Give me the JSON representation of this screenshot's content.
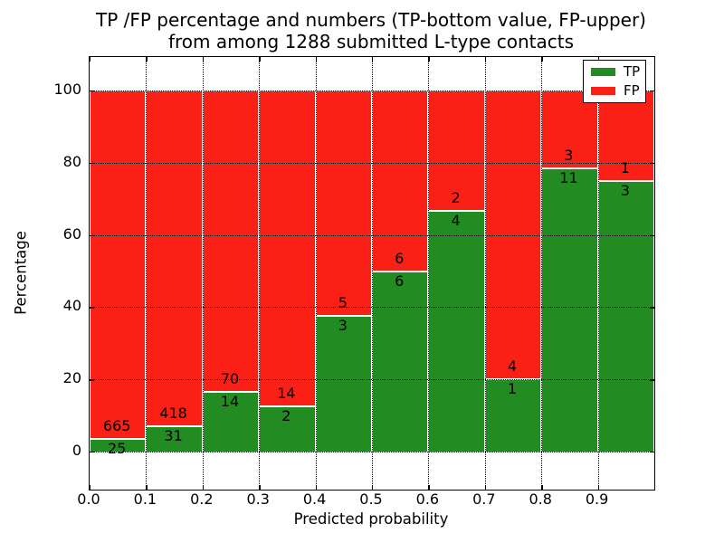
{
  "title": {
    "line1": "TP /FP percentage and numbers (TP-bottom value, FP-upper)",
    "line2": "from among 1288 submitted L-type contacts"
  },
  "chart_data": {
    "type": "bar",
    "stacked": true,
    "normalized_to_percent": true,
    "title": "TP /FP percentage and numbers (TP-bottom value, FP-upper) from among 1288 submitted L-type contacts",
    "xlabel": "Predicted probability",
    "ylabel": "Percentage",
    "bins": [
      "0.0-0.1",
      "0.1-0.2",
      "0.2-0.3",
      "0.3-0.4",
      "0.4-0.5",
      "0.5-0.6",
      "0.6-0.7",
      "0.7-0.8",
      "0.8-0.9",
      "0.9-1.0"
    ],
    "series": [
      {
        "name": "TP",
        "color": "#228b22",
        "counts": [
          25,
          31,
          14,
          2,
          3,
          6,
          4,
          1,
          11,
          3
        ]
      },
      {
        "name": "FP",
        "color": "#fa2015",
        "counts": [
          665,
          418,
          70,
          14,
          5,
          6,
          2,
          4,
          3,
          1
        ]
      }
    ],
    "tp_percent": [
      3.62,
      6.9,
      16.67,
      12.5,
      37.5,
      50.0,
      66.67,
      20.0,
      78.57,
      75.0
    ],
    "total_contacts": 1288,
    "x_ticks": [
      "0.0",
      "0.1",
      "0.2",
      "0.3",
      "0.4",
      "0.5",
      "0.6",
      "0.7",
      "0.8",
      "0.9"
    ],
    "y_ticks": [
      0,
      20,
      40,
      60,
      80,
      100
    ],
    "xlim": [
      0.0,
      1.0
    ],
    "ylim": [
      -10.5,
      109.3
    ],
    "grid": true,
    "legend": {
      "position": "upper right",
      "entries": [
        {
          "label": "TP",
          "color": "#228b22"
        },
        {
          "label": "FP",
          "color": "#fa2015"
        }
      ]
    }
  }
}
